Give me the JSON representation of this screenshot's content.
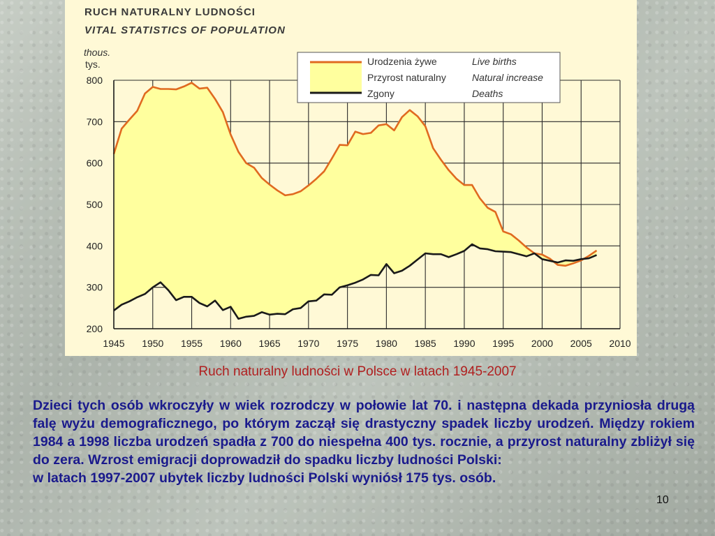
{
  "chart_data": {
    "type": "area",
    "title": "RUCH  NATURALNY  LUDNOŚCI",
    "subtitle": "VITAL  STATISTICS  OF  POPULATION",
    "unit_en": "thous.",
    "unit_pl": "tys.",
    "xlim": [
      1945,
      2010
    ],
    "ylim": [
      200,
      800
    ],
    "x_ticks": [
      1945,
      1950,
      1955,
      1960,
      1965,
      1970,
      1975,
      1980,
      1985,
      1990,
      1995,
      2000,
      2005,
      2010
    ],
    "y_ticks": [
      200,
      300,
      400,
      500,
      600,
      700,
      800
    ],
    "legend_position": "top-right",
    "legend": [
      {
        "pl": "Urodzenia żywe",
        "en": "Live births",
        "color": "#e06a20"
      },
      {
        "pl": "Przyrost naturalny",
        "en": "Natural increase",
        "color": "#ffff9e"
      },
      {
        "pl": "Zgony",
        "en": "Deaths",
        "color": "#1a1a1a"
      }
    ],
    "series": [
      {
        "name": "Urodzenia żywe",
        "color": "#e06a20",
        "x": [
          1945,
          1946,
          1947,
          1948,
          1949,
          1950,
          1951,
          1952,
          1953,
          1954,
          1955,
          1956,
          1957,
          1958,
          1959,
          1960,
          1961,
          1962,
          1963,
          1964,
          1965,
          1966,
          1967,
          1968,
          1969,
          1970,
          1971,
          1972,
          1973,
          1974,
          1975,
          1976,
          1977,
          1978,
          1979,
          1980,
          1981,
          1982,
          1983,
          1984,
          1985,
          1986,
          1987,
          1988,
          1989,
          1990,
          1991,
          1992,
          1993,
          1994,
          1995,
          1996,
          1997,
          1998,
          1999,
          2000,
          2001,
          2002,
          2003,
          2004,
          2005,
          2006,
          2007
        ],
        "values": [
          622,
          683,
          705,
          726,
          768,
          784,
          779,
          779,
          778,
          785,
          794,
          780,
          782,
          755,
          723,
          669,
          627,
          600,
          589,
          564,
          548,
          534,
          522,
          525,
          532,
          546,
          562,
          580,
          611,
          644,
          643,
          676,
          670,
          673,
          691,
          694,
          679,
          711,
          728,
          713,
          689,
          636,
          608,
          583,
          562,
          547,
          547,
          515,
          492,
          482,
          435,
          428,
          413,
          396,
          382,
          379,
          369,
          354,
          352,
          358,
          365,
          376,
          389
        ]
      },
      {
        "name": "Zgony",
        "color": "#1a1a1a",
        "x": [
          1945,
          1946,
          1947,
          1948,
          1949,
          1950,
          1951,
          1952,
          1953,
          1954,
          1955,
          1956,
          1957,
          1958,
          1959,
          1960,
          1961,
          1962,
          1963,
          1964,
          1965,
          1966,
          1967,
          1968,
          1969,
          1970,
          1971,
          1972,
          1973,
          1974,
          1975,
          1976,
          1977,
          1978,
          1979,
          1980,
          1981,
          1982,
          1983,
          1984,
          1985,
          1986,
          1987,
          1988,
          1989,
          1990,
          1991,
          1992,
          1993,
          1994,
          1995,
          1996,
          1997,
          1998,
          1999,
          2000,
          2001,
          2002,
          2003,
          2004,
          2005,
          2006,
          2007
        ],
        "values": [
          244,
          258,
          266,
          276,
          284,
          300,
          312,
          293,
          269,
          277,
          277,
          262,
          254,
          268,
          245,
          253,
          224,
          229,
          231,
          240,
          234,
          236,
          235,
          247,
          250,
          266,
          268,
          283,
          282,
          300,
          305,
          311,
          319,
          330,
          329,
          356,
          334,
          340,
          352,
          367,
          382,
          380,
          380,
          373,
          380,
          388,
          404,
          394,
          392,
          387,
          386,
          385,
          380,
          375,
          382,
          368,
          364,
          360,
          365,
          364,
          368,
          370,
          378
        ]
      }
    ],
    "fill_between": {
      "upper": "Urodzenia żywe",
      "lower": "Zgony",
      "name": "Przyrost naturalny",
      "color": "#ffff9e"
    }
  },
  "caption": "Ruch naturalny ludności w Polsce w latach 1945-2007",
  "body": {
    "paragraph1": "Dzieci tych osób wkroczyły w wiek rozrodczy w połowie lat 70. i następna dekada przyniosła drugą falę wyżu demograficznego, po którym zaczął się drastyczny spadek liczby urodzeń. Między rokiem 1984 a 1998 liczba urodzeń spadła z 700 do niespełna 400 tys. rocznie, a przyrost naturalny zbliżył się do zera. Wzrost emigracji doprowadził do spadku liczby ludności Polski:",
    "paragraph2": "w latach 1997-2007 ubytek liczby ludności Polski wyniósł 175 tys. osób."
  },
  "page_number": "10"
}
